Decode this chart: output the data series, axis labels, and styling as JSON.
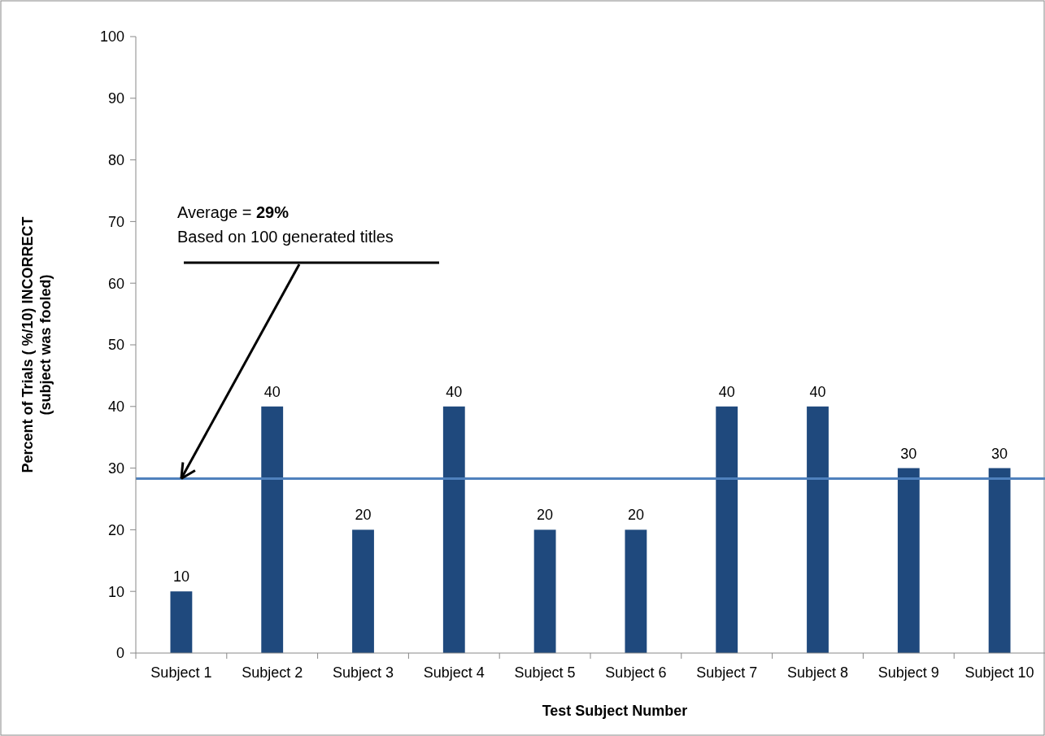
{
  "chart_data": {
    "type": "bar",
    "xlabel": "Test Subject Number",
    "ylabel": "Percent of Trials ( %/10) INCORRECT\n(subject was fooled)",
    "categories": [
      "Subject 1",
      "Subject 2",
      "Subject 3",
      "Subject 4",
      "Subject 5",
      "Subject 6",
      "Subject 7",
      "Subject 8",
      "Subject 9",
      "Subject 10"
    ],
    "values": [
      10,
      40,
      20,
      40,
      20,
      20,
      40,
      40,
      30,
      30
    ],
    "color": "#1f497d",
    "ylim": [
      0,
      100
    ],
    "yticks": [
      0,
      10,
      20,
      30,
      40,
      50,
      60,
      70,
      80,
      90,
      100
    ],
    "grid": false,
    "data_labels": true,
    "ref_lines": [
      {
        "axis": "y",
        "value": 28.3,
        "color": "#4f81bd",
        "line_style": "solid"
      }
    ],
    "annotations": [
      {
        "text": "Average = 29%\nBased on 100 generated titles",
        "x": "Subject 1",
        "y": 28.3
      }
    ]
  }
}
